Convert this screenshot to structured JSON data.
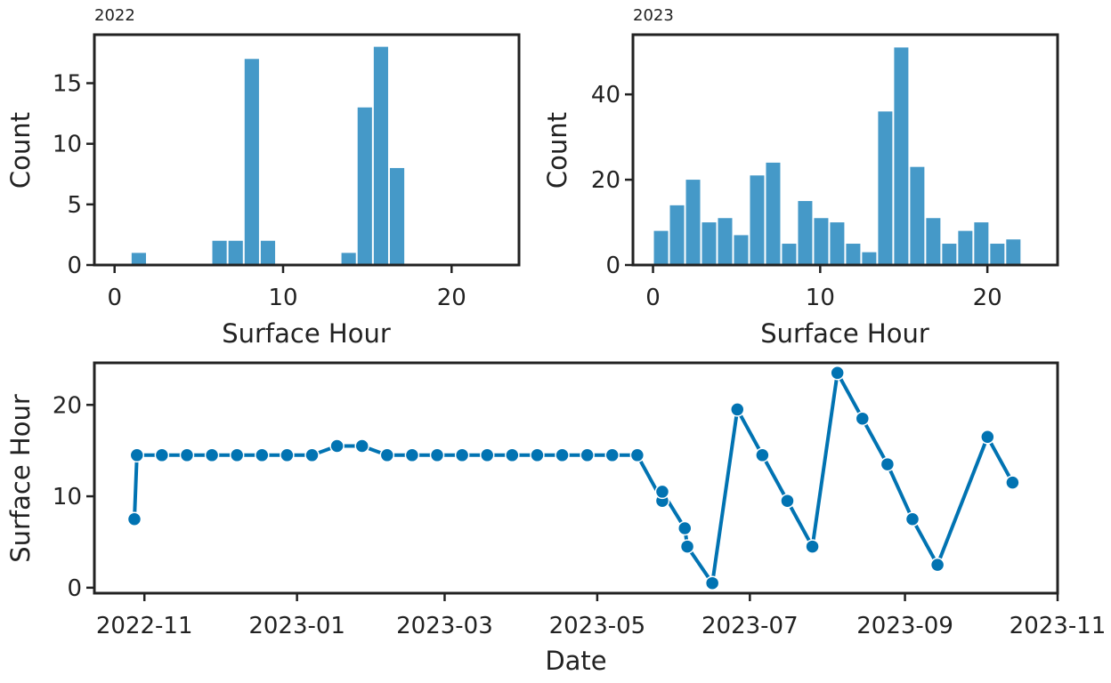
{
  "chart_data": [
    {
      "type": "bar",
      "title": "2022",
      "xlabel": "Surface Hour",
      "ylabel": "Count",
      "xlim": [
        -1.2,
        24
      ],
      "ylim": [
        0,
        19
      ],
      "xticks": [
        0,
        10,
        20
      ],
      "yticks": [
        0,
        5,
        10,
        15
      ],
      "bin_edges_start": 0,
      "bin_width": 0.958,
      "values": [
        0,
        1,
        0,
        0,
        0,
        0,
        2,
        2,
        17,
        2,
        0,
        0,
        0,
        0,
        1,
        13,
        18,
        8,
        0,
        0,
        0,
        0,
        0,
        0
      ],
      "color": "#4599c8",
      "grid": false
    },
    {
      "type": "bar",
      "title": "2023",
      "xlabel": "Surface Hour",
      "ylabel": "Count",
      "xlim": [
        -1.2,
        24.2
      ],
      "ylim": [
        0,
        54
      ],
      "xticks": [
        0,
        10,
        20
      ],
      "yticks": [
        0,
        20,
        40
      ],
      "bin_edges_start": 0,
      "bin_width": 0.958,
      "values": [
        8,
        14,
        20,
        10,
        11,
        7,
        21,
        24,
        5,
        15,
        11,
        10,
        5,
        3,
        36,
        51,
        23,
        11,
        5,
        8,
        10,
        5,
        6
      ],
      "color": "#4599c8",
      "grid": false
    },
    {
      "type": "line",
      "xlabel": "Date",
      "ylabel": "Surface Hour",
      "xlim": [
        "2022-10-12",
        "2023-11-01"
      ],
      "ylim": [
        -0.6,
        24.6
      ],
      "xticks": [
        "2022-11-01",
        "2023-01-01",
        "2023-03-01",
        "2023-05-01",
        "2023-07-01",
        "2023-09-01",
        "2023-11-01"
      ],
      "xtick_labels": [
        "2022-11",
        "2023-01",
        "2023-03",
        "2023-05",
        "2023-07",
        "2023-09",
        "2023-11"
      ],
      "yticks": [
        0,
        10,
        20
      ],
      "markers": true,
      "color": "#0173b2",
      "grid": false,
      "points": [
        {
          "x": "2022-10-28",
          "y": 7.5
        },
        {
          "x": "2022-10-29",
          "y": 14.5
        },
        {
          "x": "2022-11-08",
          "y": 14.5
        },
        {
          "x": "2022-11-18",
          "y": 14.5
        },
        {
          "x": "2022-11-28",
          "y": 14.5
        },
        {
          "x": "2022-12-08",
          "y": 14.5
        },
        {
          "x": "2022-12-18",
          "y": 14.5
        },
        {
          "x": "2022-12-28",
          "y": 14.5
        },
        {
          "x": "2023-01-07",
          "y": 14.5
        },
        {
          "x": "2023-01-17",
          "y": 15.5
        },
        {
          "x": "2023-01-27",
          "y": 15.5
        },
        {
          "x": "2023-02-06",
          "y": 14.5
        },
        {
          "x": "2023-02-16",
          "y": 14.5
        },
        {
          "x": "2023-02-26",
          "y": 14.5
        },
        {
          "x": "2023-03-08",
          "y": 14.5
        },
        {
          "x": "2023-03-18",
          "y": 14.5
        },
        {
          "x": "2023-03-28",
          "y": 14.5
        },
        {
          "x": "2023-04-07",
          "y": 14.5
        },
        {
          "x": "2023-04-17",
          "y": 14.5
        },
        {
          "x": "2023-04-27",
          "y": 14.5
        },
        {
          "x": "2023-05-07",
          "y": 14.5
        },
        {
          "x": "2023-05-17",
          "y": 14.5
        },
        {
          "x": "2023-05-27",
          "y": 9.5
        },
        {
          "x": "2023-05-27",
          "y": 10.5
        },
        {
          "x": "2023-06-05",
          "y": 6.5
        },
        {
          "x": "2023-06-06",
          "y": 4.5
        },
        {
          "x": "2023-06-16",
          "y": 0.5
        },
        {
          "x": "2023-06-26",
          "y": 19.5
        },
        {
          "x": "2023-07-06",
          "y": 14.5
        },
        {
          "x": "2023-07-16",
          "y": 9.5
        },
        {
          "x": "2023-07-26",
          "y": 4.5
        },
        {
          "x": "2023-08-05",
          "y": 23.5
        },
        {
          "x": "2023-08-15",
          "y": 18.5
        },
        {
          "x": "2023-08-25",
          "y": 13.5
        },
        {
          "x": "2023-09-04",
          "y": 7.5
        },
        {
          "x": "2023-09-14",
          "y": 2.5
        },
        {
          "x": "2023-10-04",
          "y": 16.5
        },
        {
          "x": "2023-10-14",
          "y": 11.5
        }
      ]
    }
  ]
}
